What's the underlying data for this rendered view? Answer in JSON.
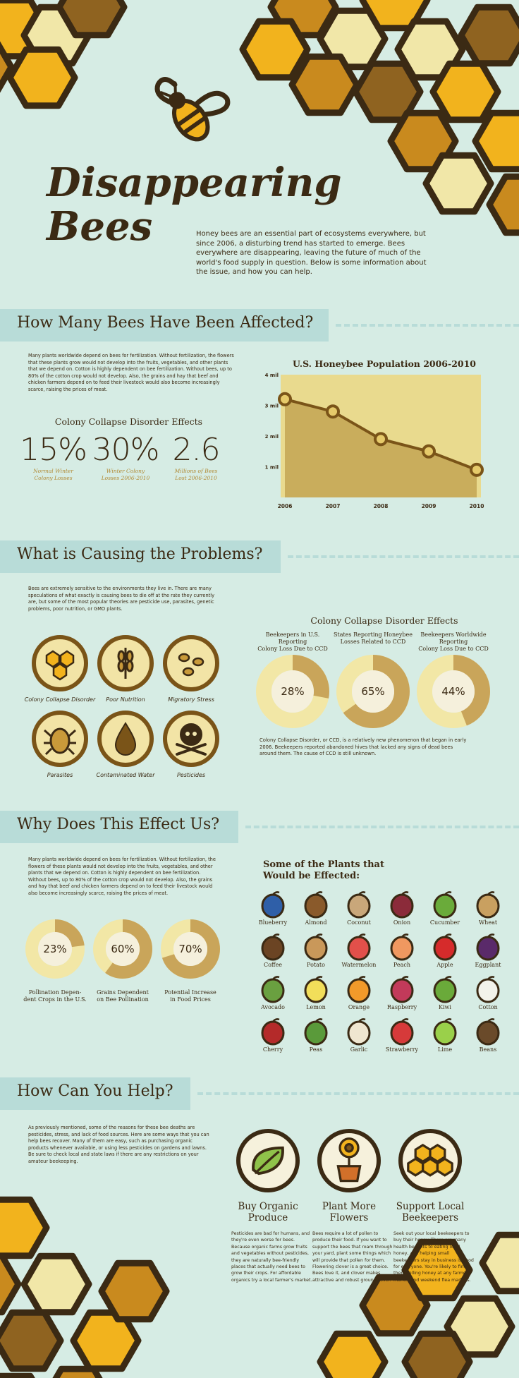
{
  "header": {
    "title_line1": "Disappearing",
    "title_line2": "Bees",
    "intro": "Honey bees are an essential part of ecosystems everywhere, but since 2006, a disturbing trend has started to emerge. Bees everywhere are disappearing, leaving the future of much of the world's food supply in question. Below is some information about the issue, and how you can help."
  },
  "section1": {
    "heading": "How Many Bees Have Been Affected?",
    "paragraph": "Many plants worldwide depend on bees for fertilization. Without fertilization, the flowers that these plants grow would not develop into the fruits, vegetables, and other plants that we depend on. Cotton is highly dependent on bee fertilization. Without bees, up to 80% of the cotton crop would not develop. Also, the grains and hay that beef and chicken farmers depend on to feed their livestock would also become increasingly scarce, raising the prices of meat.",
    "ccd_title": "Colony Collapse Disorder Effects",
    "stats": [
      {
        "value": "15%",
        "label1": "Normal Winter",
        "label2": "Colony Losses"
      },
      {
        "value": "30%",
        "label1": "Winter Colony",
        "label2": "Losses 2006-2010"
      },
      {
        "value": "2.6",
        "label1": "Millions of Bees",
        "label2": "Lost 2006-2010"
      }
    ]
  },
  "chart_data": [
    {
      "type": "line",
      "title": "U.S. Honeybee Population 2006-2010",
      "x": [
        "2006",
        "2007",
        "2008",
        "2009",
        "2010"
      ],
      "values": [
        3.2,
        2.8,
        1.9,
        1.5,
        0.9
      ],
      "yticks": [
        "1 mil",
        "2 mil",
        "3 mil",
        "4 mil"
      ],
      "ylim": [
        0,
        4
      ],
      "grid": false,
      "colors": {
        "fill": "#c9ad5c",
        "area": "#e9da8e",
        "line": "#7a5418",
        "point": "#e6ca6a"
      }
    },
    {
      "type": "pie",
      "title": "Colony Collapse Disorder Effects",
      "series": [
        {
          "label1": "Beekeepers in U.S. Reporting",
          "label2": "Colony Loss Due to CCD",
          "value": 28,
          "display": "28%"
        },
        {
          "label1": "States Reporting Honeybee",
          "label2": "Losses Related to CCD",
          "value": 65,
          "display": "65%"
        },
        {
          "label1": "Beekeepers Worldwide Reporting",
          "label2": "Colony Loss Due to CCD",
          "value": 44,
          "display": "44%"
        }
      ]
    },
    {
      "type": "pie",
      "series": [
        {
          "label1": "Pollination Depen-",
          "label2": "dent Crops in the U.S.",
          "value": 23,
          "display": "23%"
        },
        {
          "label1": "Grains Dependent",
          "label2": "on Bee Pollination",
          "value": 60,
          "display": "60%"
        },
        {
          "label1": "Potential Increase",
          "label2": "in Food Prices",
          "value": 70,
          "display": "70%"
        }
      ]
    }
  ],
  "section2": {
    "heading": "What is Causing the Problems?",
    "paragraph": "Bees are extremely sensitive to the environments they live in. There are many speculations of what exactly is causing bees to die off at the rate they currently are, but some of the most popular theories are pesticide use, parasites, genetic problems, poor nutrition, or GMO plants.",
    "causes": [
      {
        "label": "Colony Collapse Disorder",
        "icon": "honeycomb-icon"
      },
      {
        "label": "Poor Nutrition",
        "icon": "wheat-icon"
      },
      {
        "label": "Migratory Stress",
        "icon": "bees-icon"
      },
      {
        "label": "Parasites",
        "icon": "mite-icon"
      },
      {
        "label": "Contaminated Water",
        "icon": "water-drop-icon"
      },
      {
        "label": "Pesticides",
        "icon": "skull-icon"
      }
    ],
    "ccd_note": "Colony Collapse Disorder, or CCD, is a relatively new phenomenon that began in early 2006. Beekeepers reported abandoned hives that lacked any signs of dead bees around them. The cause of CCD is still unknown."
  },
  "section3": {
    "heading": "Why Does This Effect Us?",
    "paragraph": "Many plants worldwide depend on bees for fertilization. Without fertilization, the flowers of these plants would not develop into the fruits, vegetables, and other plants that we depend on. Cotton is highly dependent on bee fertilization. Without bees, up to 80% of the cotton crop would not develop. Also, the grains and hay that beef and chicken farmers depend on to feed their livestock would also become increasingly scarce, raising the prices of meat.",
    "plants_title1": "Some of the Plants that",
    "plants_title2": "Would be Effected:",
    "plants": [
      "Blueberry",
      "Almond",
      "Coconut",
      "Onion",
      "Cucumber",
      "Wheat",
      "Coffee",
      "Potato",
      "Watermelon",
      "Peach",
      "Apple",
      "Eggplant",
      "Avocado",
      "Lemon",
      "Orange",
      "Raspberry",
      "Kiwi",
      "Cotton",
      "Cherry",
      "Peas",
      "Garlic",
      "Strawberry",
      "Lime",
      "Beans"
    ],
    "plant_colors": [
      "#2f5fa8",
      "#8a5a2b",
      "#c9a77a",
      "#8b2b3a",
      "#6aab3a",
      "#c9a060",
      "#6b4423",
      "#c9985a",
      "#e2504a",
      "#f09860",
      "#d62b2b",
      "#5a2a6a",
      "#6aa040",
      "#f2de5a",
      "#f29a2a",
      "#c23a5a",
      "#6aaa3a",
      "#f2f2ea",
      "#b42a2a",
      "#5a9a3a",
      "#efe6d0",
      "#d63a3a",
      "#9ad04a",
      "#6a4a2a"
    ]
  },
  "section4": {
    "heading": "How Can You Help?",
    "paragraph": "As previously mentioned, some of the reasons for these bee deaths are pesticides, stress, and lack of food sources. Here are some ways that you can help bees recover. Many of them are easy, such as purchasing organic products whenever available, or using less pesticides on gardens and lawns. Be sure to check local and state laws if there are any restrictions on your amateur beekeeping.",
    "tips": [
      {
        "title1": "Buy Organic",
        "title2": "Produce",
        "icon": "leaf-icon",
        "text": "Pesticides are bad for humans, and they're even worse for bees. Because organic farms grow fruits and vegetables without pesticides, they are naturally bee-friendly places that actually need bees to grow their crops. For affordable organics try a local farmer's market."
      },
      {
        "title1": "Plant More",
        "title2": "Flowers",
        "icon": "flower-pot-icon",
        "text": "Bees require a lot of pollen to produce their food. If you want to support the bees that roam through your yard, plant some things which will provide that pollen for them. Flowering clover is a great choice. Bees love it, and clover makes attractive and robust ground cover."
      },
      {
        "title1": "Support Local",
        "title2": "Beekeepers",
        "icon": "honeycomb-icon",
        "text": "Seek out your local beekeepers to buy their honey. There are many health benefits to eating local honey, and helping small beekeepers stay in business is good for everyone. You're likely to find them selling honey at any farmer's market and weekend flea markets."
      }
    ]
  },
  "colors": {
    "background": "#d6ece4",
    "band": "#b8dcd8",
    "dark": "#3b2a14",
    "gold": "#f2b31d",
    "amber": "#c98a1e",
    "cream": "#f1e7a8",
    "brown": "#8f6320"
  }
}
